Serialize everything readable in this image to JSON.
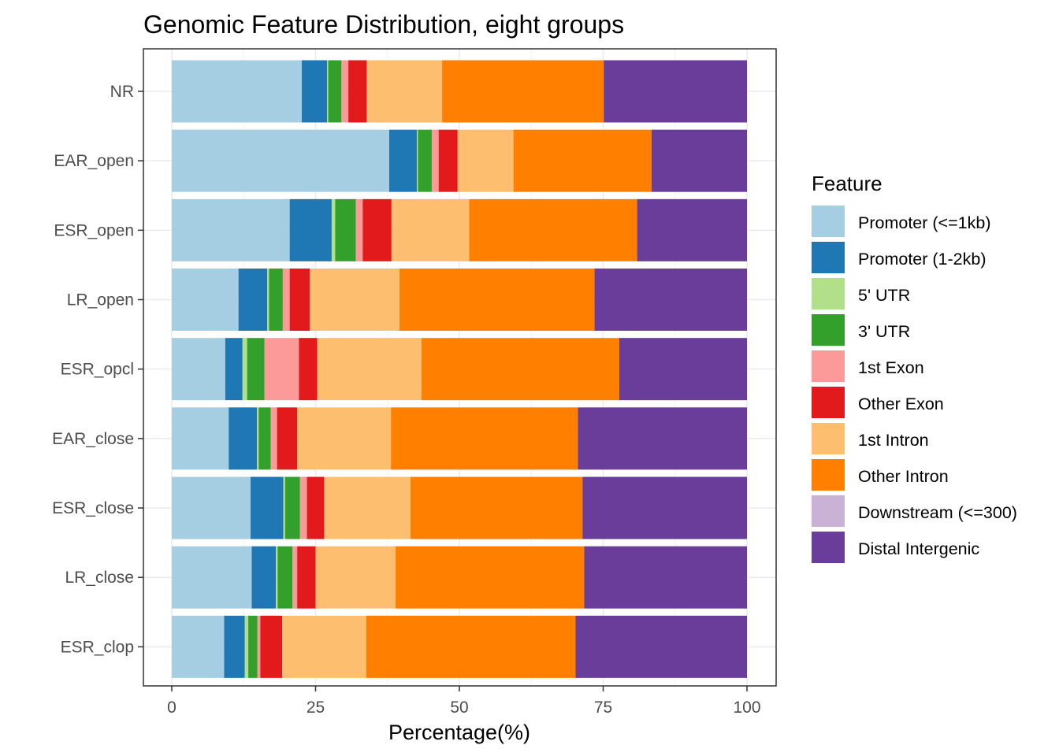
{
  "chart_data": {
    "type": "bar",
    "orientation": "horizontal",
    "stacked": true,
    "title": "Genomic Feature Distribution, eight groups",
    "xlabel": "Percentage(%)",
    "ylabel": "",
    "xlim": [
      0,
      100
    ],
    "xticks": [
      "0",
      "25",
      "50",
      "75",
      "100"
    ],
    "grid": true,
    "legend_title": "Feature",
    "legend_position": "right",
    "categories": [
      "NR",
      "EAR_open",
      "ESR_open",
      "LR_open",
      "ESR_opcl",
      "EAR_close",
      "ESR_close",
      "LR_close",
      "ESR_clop"
    ],
    "series": [
      {
        "name": "Promoter (<=1kb)",
        "color": "#a6cee3",
        "values": [
          22.6,
          37.8,
          20.5,
          11.6,
          9.3,
          9.9,
          13.7,
          13.9,
          9.1
        ]
      },
      {
        "name": "Promoter (1-2kb)",
        "color": "#1f78b4",
        "values": [
          4.4,
          4.8,
          7.3,
          5.0,
          3.0,
          4.9,
          5.7,
          4.2,
          3.6
        ]
      },
      {
        "name": "5' UTR",
        "color": "#b2df8a",
        "values": [
          0.2,
          0.2,
          0.6,
          0.3,
          0.8,
          0.3,
          0.3,
          0.3,
          0.6
        ]
      },
      {
        "name": "3' UTR",
        "color": "#33a02c",
        "values": [
          2.3,
          2.4,
          3.6,
          2.4,
          3.0,
          2.1,
          2.6,
          2.6,
          1.6
        ]
      },
      {
        "name": "1st Exon",
        "color": "#fb9a99",
        "values": [
          1.2,
          1.2,
          1.2,
          1.2,
          6.0,
          1.1,
          1.2,
          0.8,
          0.5
        ]
      },
      {
        "name": "Other Exon",
        "color": "#e31a1c",
        "values": [
          3.2,
          3.3,
          5.0,
          3.5,
          3.2,
          3.5,
          3.0,
          3.2,
          3.8
        ]
      },
      {
        "name": "1st Intron",
        "color": "#fdbf6f",
        "values": [
          13.1,
          9.7,
          13.5,
          15.6,
          18.1,
          16.3,
          15.0,
          13.9,
          14.6
        ]
      },
      {
        "name": "Other Intron",
        "color": "#ff7f00",
        "values": [
          28.1,
          24.0,
          29.2,
          33.9,
          34.4,
          32.5,
          29.9,
          32.8,
          36.4
        ]
      },
      {
        "name": "Downstream (<=300)",
        "color": "#cab2d6",
        "values": [
          0.0,
          0.0,
          0.0,
          0.0,
          0.0,
          0.0,
          0.0,
          0.0,
          0.0
        ]
      },
      {
        "name": "Distal Intergenic",
        "color": "#6a3d9a",
        "values": [
          24.9,
          16.6,
          19.1,
          26.5,
          22.2,
          29.4,
          28.6,
          28.3,
          29.8
        ]
      }
    ]
  }
}
